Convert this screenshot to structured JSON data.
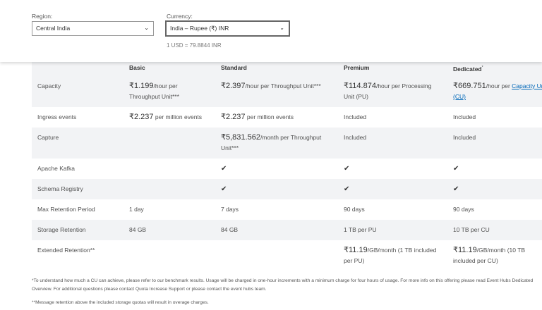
{
  "filters": {
    "region_label": "Region:",
    "region_value": "Central India",
    "currency_label": "Currency:",
    "currency_value": "India – Rupee (₹) INR",
    "exchange_rate": "1 USD = 79.8844 INR"
  },
  "table": {
    "headers": [
      "",
      "Basic",
      "Standard",
      "Premium",
      "Dedicated"
    ],
    "dedicated_mark": "*",
    "rows": [
      {
        "label": "Capacity",
        "basic": {
          "price": "₹1.199",
          "unit": "/hour per Throughput Unit***"
        },
        "standard": {
          "price": "₹2.397",
          "unit": "/hour per Throughput Unit***"
        },
        "premium": {
          "price": "₹114.874",
          "unit": "/hour per Processing Unit (PU)"
        },
        "dedicated": {
          "price": "₹669.751",
          "unit": "/hour per ",
          "link": "Capacity Unit (CU)"
        }
      },
      {
        "label": "Ingress events",
        "basic": {
          "price": "₹2.237",
          "unit": " per million events"
        },
        "standard": {
          "price": "₹2.237",
          "unit": " per million events"
        },
        "premium": "Included",
        "dedicated": "Included"
      },
      {
        "label": "Capture",
        "basic": "",
        "standard": {
          "price": "₹5,831.562",
          "unit": "/month per Throughput Unit***"
        },
        "premium": "Included",
        "dedicated": "Included"
      },
      {
        "label": "Apache Kafka",
        "basic": "",
        "standard": "check",
        "premium": "check",
        "dedicated": "check"
      },
      {
        "label": "Schema Registry",
        "basic": "",
        "standard": "check",
        "premium": "check",
        "dedicated": "check"
      },
      {
        "label": "Max Retention Period",
        "basic": "1 day",
        "standard": "7 days",
        "premium": "90 days",
        "dedicated": "90 days"
      },
      {
        "label": "Storage Retention",
        "basic": "84 GB",
        "standard": "84 GB",
        "premium": "1 TB per PU",
        "dedicated": "10 TB per CU"
      },
      {
        "label": "Extended Retention**",
        "basic": "",
        "standard": "",
        "premium": {
          "price": "₹11.19",
          "unit": "/GB/month (1 TB included per PU)"
        },
        "dedicated": {
          "price": "₹11.19",
          "unit": "/GB/month (10 TB included per CU)"
        }
      }
    ]
  },
  "footnotes": [
    "*To understand how much a CU can achieve, please refer to our benchmark results. Usage will be charged in one-hour increments with a minimum charge for four hours of usage. For more info on this offering please read Event Hubs Dedicated Overview. For additional questions please contact Quota Increase Support or please contact the event hubs team.",
    "**Message retention above the included storage quotas will result in overage charges."
  ]
}
